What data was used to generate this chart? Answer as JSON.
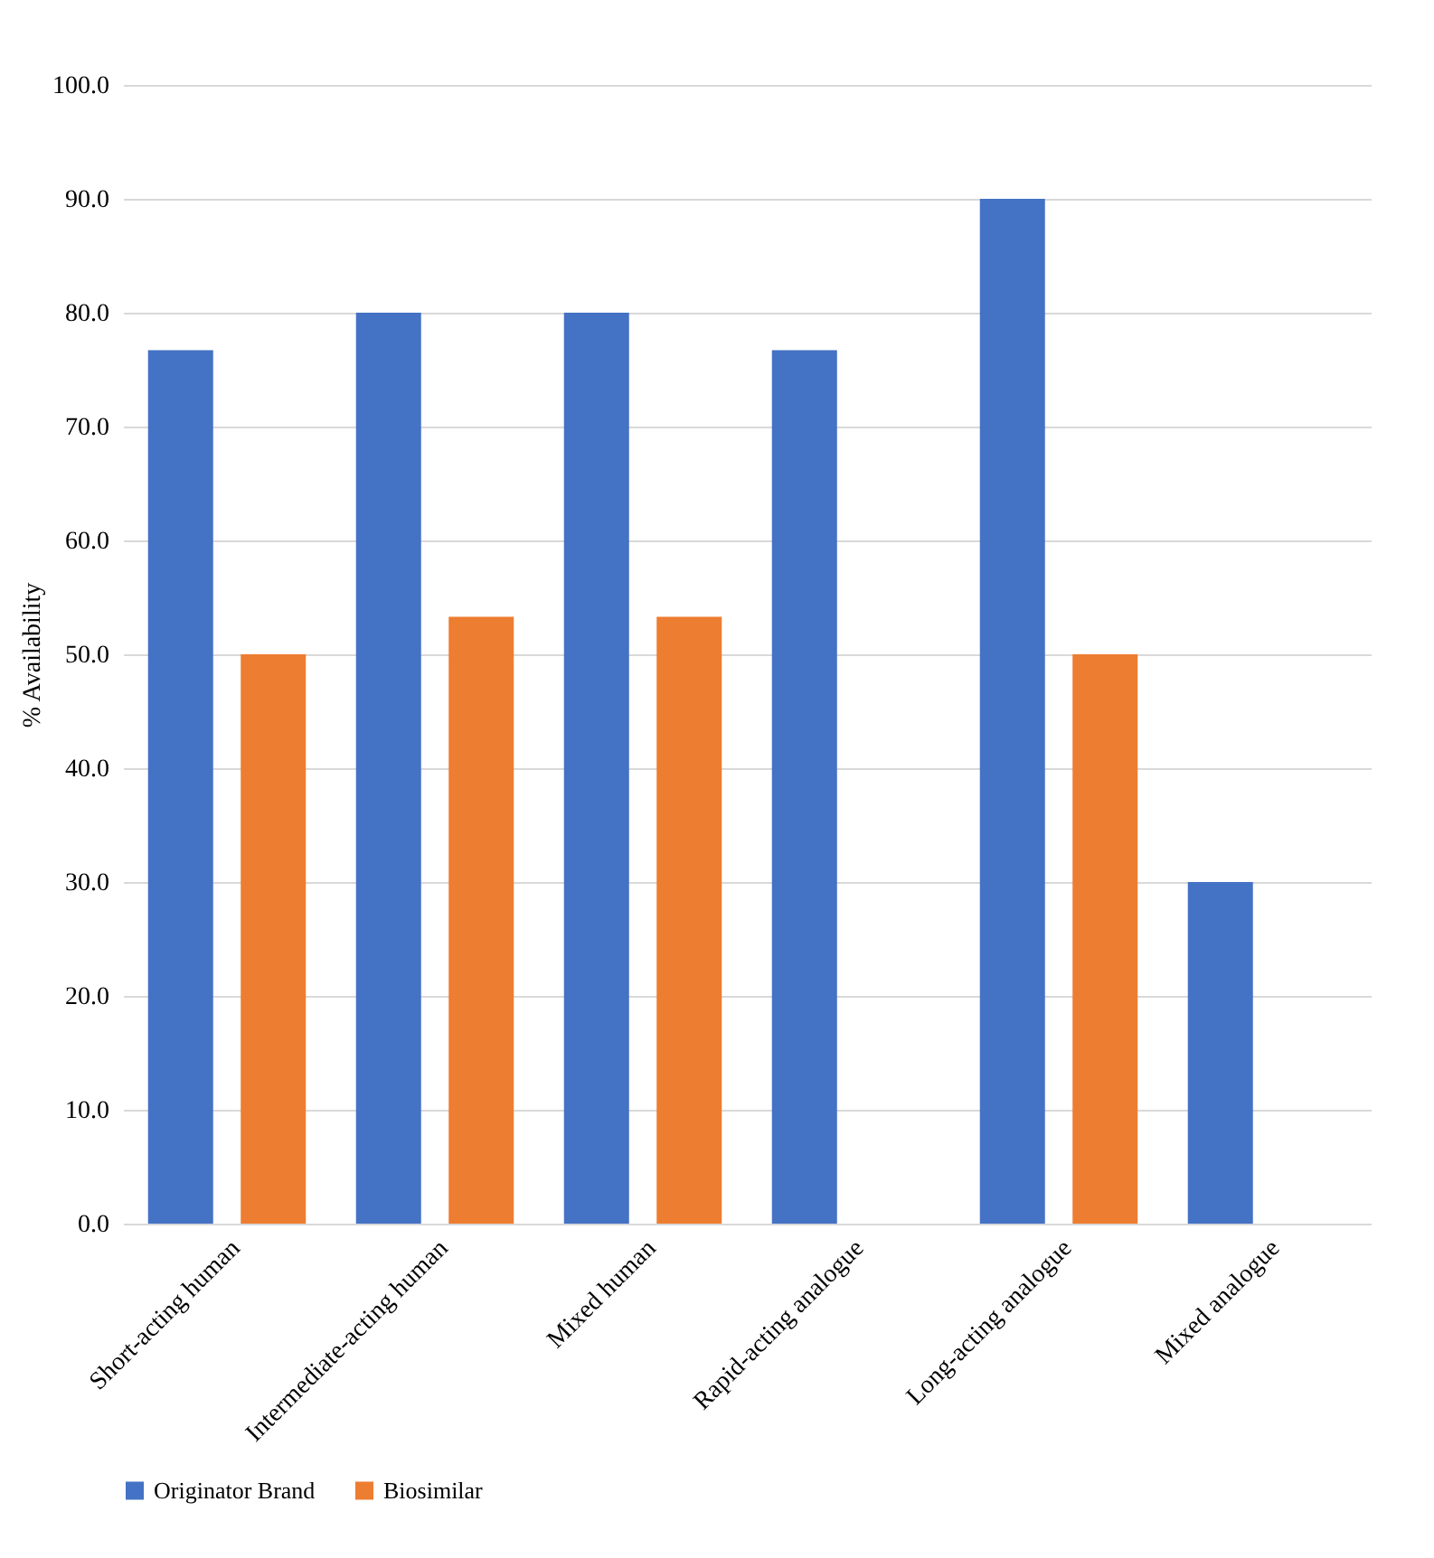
{
  "chart_data": {
    "type": "bar",
    "ylabel": "% Availability",
    "categories": [
      "Short-acting human",
      "Intermediate-acting human",
      "Mixed human",
      "Rapid-acting analogue",
      "Long-acting analogue",
      "Mixed analogue"
    ],
    "series": [
      {
        "name": "Originator Brand",
        "color": "#4472c4",
        "values": [
          76.7,
          80.0,
          80.0,
          76.7,
          90.0,
          30.0
        ]
      },
      {
        "name": "Biosimilar",
        "color": "#ed7d31",
        "values": [
          50.0,
          53.3,
          53.3,
          null,
          50.0,
          null
        ]
      }
    ],
    "ylim": [
      0,
      100
    ],
    "yticks": [
      {
        "value": 0,
        "label": "0.0"
      },
      {
        "value": 10,
        "label": "10.0"
      },
      {
        "value": 20,
        "label": "20.0"
      },
      {
        "value": 30,
        "label": "30.0"
      },
      {
        "value": 40,
        "label": "40.0"
      },
      {
        "value": 50,
        "label": "50.0"
      },
      {
        "value": 60,
        "label": "60.0"
      },
      {
        "value": 70,
        "label": "70.0"
      },
      {
        "value": 80,
        "label": "80.0"
      },
      {
        "value": 90,
        "label": "90.0"
      },
      {
        "value": 100,
        "label": "100.0"
      }
    ],
    "grid": "y",
    "legend": "bottom"
  }
}
